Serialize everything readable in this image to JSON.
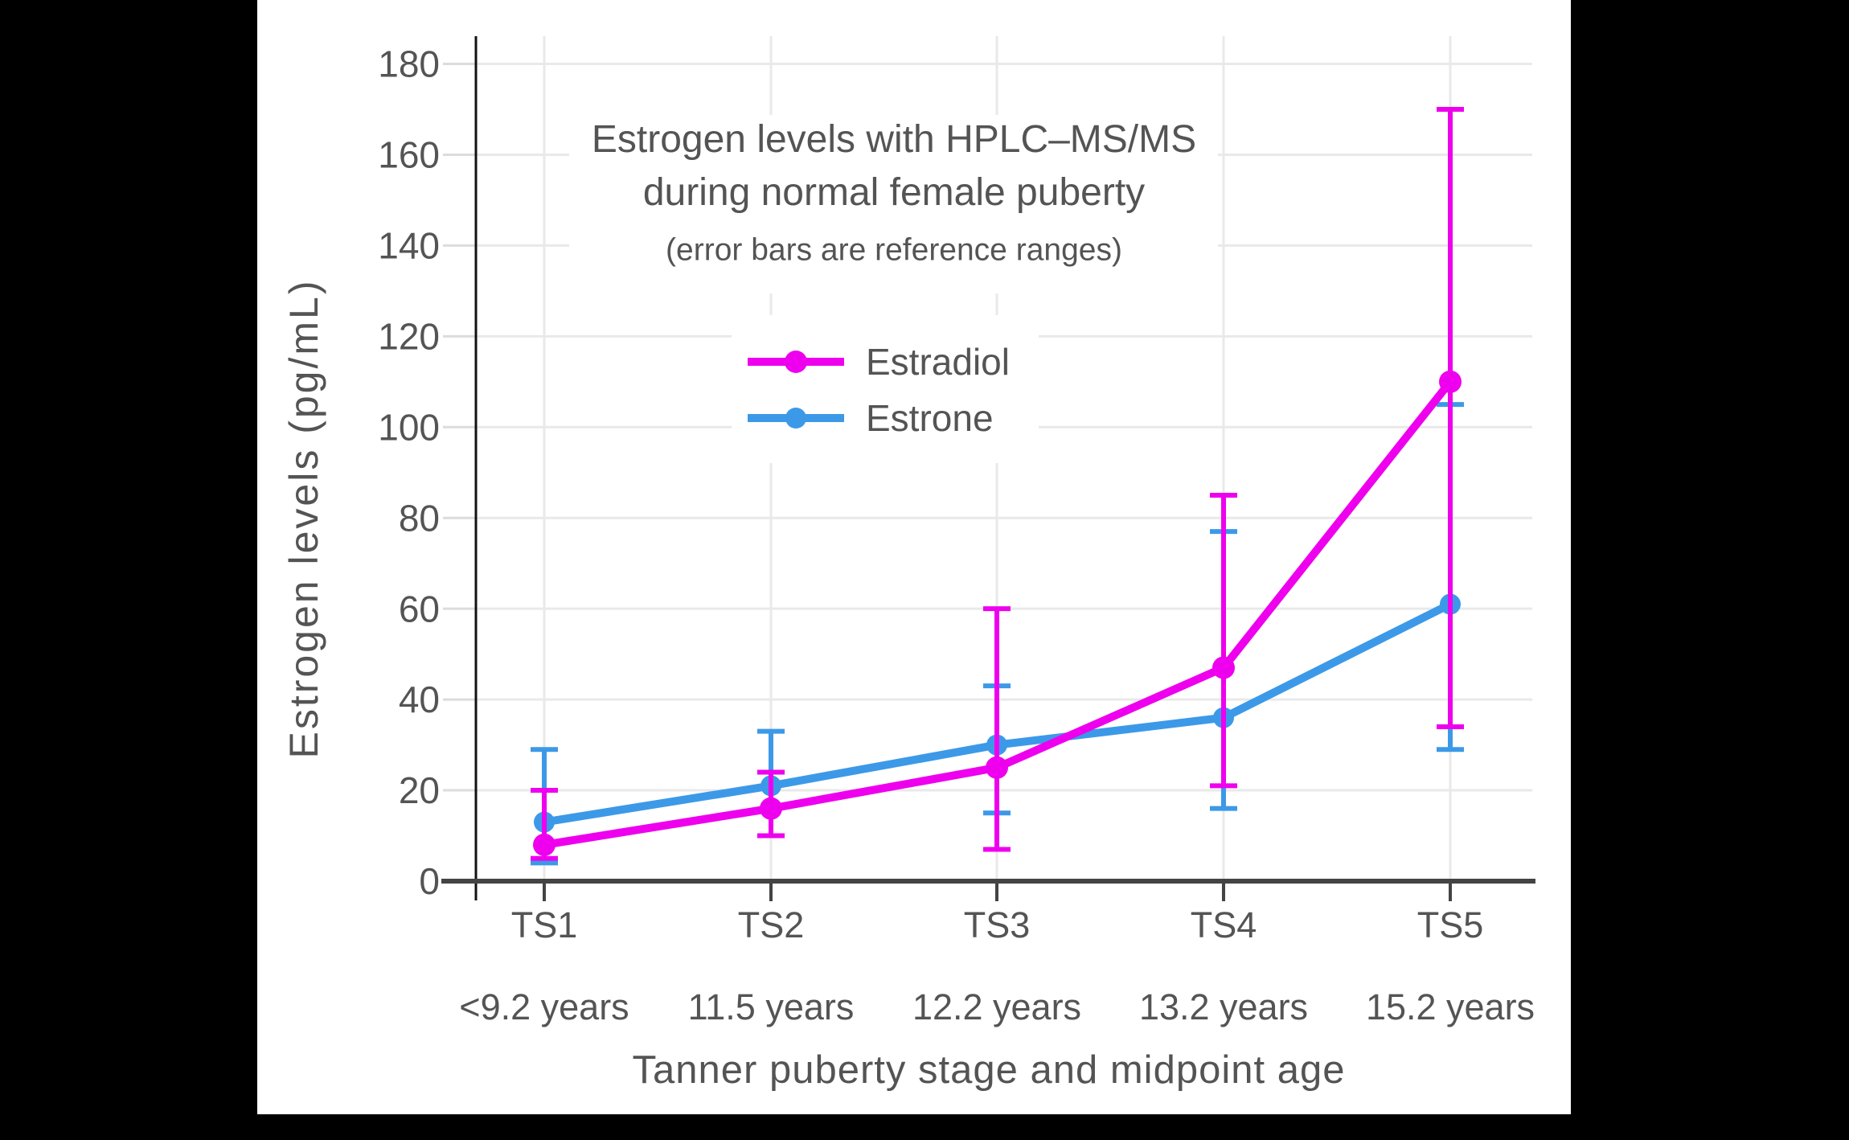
{
  "chart_data": {
    "type": "line",
    "title": "Estrogen levels with HPLC–MS/MS during normal female puberty",
    "title_line1": "Estrogen levels with HPLC–MS/MS",
    "title_line2": "during normal female puberty",
    "subtitle": "(error bars are reference ranges)",
    "xlabel": "Tanner puberty stage and midpoint age",
    "ylabel": "Estrogen levels (pg/mL)",
    "categories": [
      "TS1",
      "TS2",
      "TS3",
      "TS4",
      "TS5"
    ],
    "category_ages": [
      "<9.2 years",
      "11.5 years",
      "12.2 years",
      "13.2 years",
      "15.2 years"
    ],
    "yticks": [
      0,
      20,
      40,
      60,
      80,
      100,
      120,
      140,
      160,
      180
    ],
    "ylim": [
      0,
      186
    ],
    "grid": true,
    "legend_position": "inside-upper-center",
    "error_bar_note": "error bars are reference ranges",
    "series": [
      {
        "name": "Estradiol",
        "color": "#EE00EE",
        "values": [
          8,
          16,
          25,
          47,
          110
        ],
        "error_low": [
          5,
          10,
          7,
          21,
          34
        ],
        "error_high": [
          20,
          24,
          60,
          85,
          170
        ]
      },
      {
        "name": "Estrone",
        "color": "#3C99E8",
        "values": [
          13,
          21,
          30,
          36,
          61
        ],
        "error_low": [
          4,
          10,
          15,
          16,
          29
        ],
        "error_high": [
          29,
          33,
          43,
          77,
          105
        ]
      }
    ]
  },
  "colors": {
    "letterbox": "#000000",
    "panel": "#FFFFFF",
    "gridline": "#E9E9E9",
    "y_tick": "#DCDCDC",
    "x_axis": "#444444",
    "y_axis": "#111111",
    "text": "#545454"
  }
}
